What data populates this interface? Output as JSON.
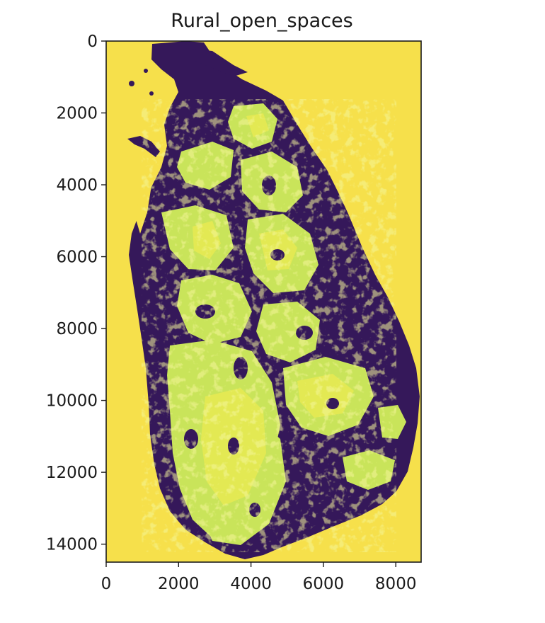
{
  "chart_data": {
    "type": "heatmap",
    "title": "Rural_open_spaces",
    "xlabel": "",
    "ylabel": "",
    "xlim": [
      0,
      8700
    ],
    "ylim": [
      14500,
      0
    ],
    "x_ticks": [
      0,
      2000,
      4000,
      6000,
      8000
    ],
    "y_ticks": [
      0,
      2000,
      4000,
      6000,
      8000,
      10000,
      12000,
      14000
    ],
    "x_tick_labels": [
      "0",
      "2000",
      "4000",
      "6000",
      "8000"
    ],
    "y_tick_labels": [
      "0",
      "2000",
      "4000",
      "6000",
      "8000",
      "10000",
      "12000",
      "14000"
    ],
    "grid": false,
    "colormap": "viridis",
    "colors": {
      "background_value": "#f6e04b",
      "land_value": "#35185a",
      "open_space_value": "#c9e45a",
      "open_space_highlight": "#e8ea52"
    }
  }
}
